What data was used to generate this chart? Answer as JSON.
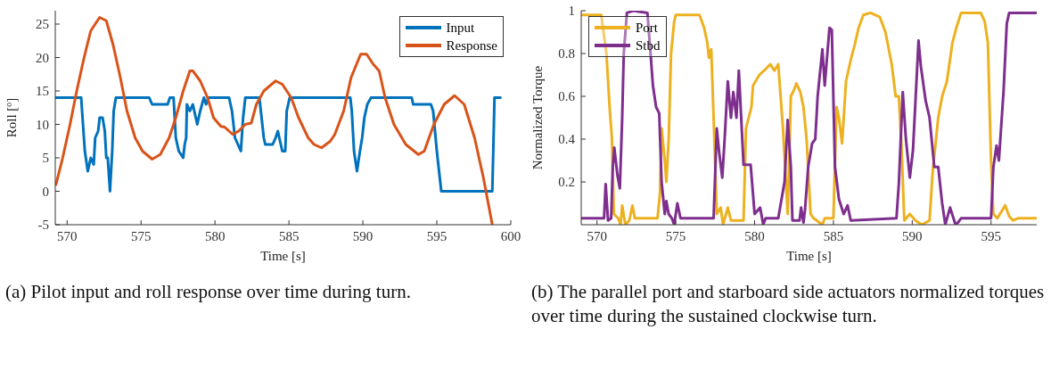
{
  "chart_data": [
    {
      "type": "line",
      "xlabel": "Time [s]",
      "ylabel": "Roll [$^{o}$]",
      "xlim": [
        569.2,
        600
      ],
      "xticks": [
        570,
        575,
        580,
        585,
        590,
        595,
        600
      ],
      "ylim": [
        -5,
        27
      ],
      "yticks": [
        -5,
        0,
        5,
        10,
        15,
        20,
        25
      ],
      "legend": "top right",
      "annotations": [
        "(a) Pilot input and roll response over time during turn."
      ],
      "series": [
        {
          "name": "Input",
          "color": "#0072bd",
          "x": [
            569.2,
            570.95,
            571.2,
            571.4,
            571.6,
            571.8,
            571.9,
            572.1,
            572.2,
            572.4,
            572.55,
            572.65,
            572.75,
            572.9,
            573.05,
            573.15,
            573.3,
            575.55,
            575.75,
            576.8,
            576.95,
            577.2,
            577.35,
            577.55,
            577.85,
            577.95,
            578.05,
            578.1,
            578.3,
            578.5,
            578.7,
            578.8,
            579.0,
            579.25,
            579.4,
            579.55,
            580.95,
            581.15,
            581.35,
            581.75,
            581.9,
            582.05,
            583.0,
            583.1,
            583.3,
            583.4,
            583.9,
            584.1,
            584.25,
            584.45,
            584.55,
            584.75,
            584.85,
            585.05,
            589.15,
            589.25,
            589.4,
            589.6,
            589.8,
            589.95,
            590.1,
            590.3,
            590.55,
            593.3,
            593.4,
            594.6,
            594.75,
            595.0,
            595.3,
            598.75,
            598.9,
            599.3
          ],
          "values": [
            14,
            14,
            6,
            3,
            5,
            4,
            8,
            9,
            11,
            11,
            9,
            5,
            5,
            0,
            6,
            12,
            14,
            14,
            13,
            13,
            14,
            14,
            8,
            6,
            5,
            7,
            8,
            13,
            12,
            13,
            11,
            10,
            12,
            14,
            13,
            14,
            14,
            12,
            8,
            6,
            11,
            14,
            14,
            12,
            8,
            7,
            7,
            8,
            9,
            7,
            6,
            6,
            12,
            14,
            14,
            12,
            6,
            3,
            6,
            8,
            11,
            13,
            14,
            14,
            13,
            13,
            12,
            6,
            0,
            0,
            14,
            14
          ]
        },
        {
          "name": "Response",
          "color": "#d95319",
          "x": [
            569.25,
            569.7,
            570.2,
            570.65,
            571.15,
            571.6,
            572.2,
            572.65,
            573.1,
            573.6,
            574.05,
            574.6,
            575.1,
            575.75,
            576.3,
            576.9,
            577.35,
            577.85,
            578.3,
            578.5,
            579.0,
            579.5,
            579.9,
            580.4,
            580.65,
            581.2,
            581.6,
            582.05,
            582.45,
            582.8,
            583.3,
            584.1,
            584.55,
            585.15,
            585.65,
            586.3,
            586.7,
            587.2,
            587.8,
            588.1,
            588.7,
            589.2,
            589.85,
            590.25,
            590.7,
            591.1,
            591.5,
            592.1,
            592.9,
            593.75,
            594.15,
            594.8,
            595.5,
            596.2,
            596.85,
            597.55,
            598.15,
            598.75
          ],
          "values": [
            1,
            5,
            10,
            15,
            20,
            24,
            26,
            25.5,
            22,
            17,
            12,
            8,
            6,
            4.8,
            5.5,
            8,
            11,
            15,
            18,
            18,
            16.5,
            14,
            11,
            9.7,
            9.6,
            8.5,
            9,
            10,
            10.2,
            13,
            15,
            16.5,
            16,
            14,
            11,
            8,
            7,
            6.5,
            7.5,
            8.5,
            12,
            17,
            20.5,
            20.5,
            19,
            18,
            14,
            10,
            7,
            5.5,
            6,
            10,
            13,
            14.3,
            13,
            8,
            2,
            -5
          ]
        }
      ]
    },
    {
      "type": "line",
      "xlabel": "Time [s]",
      "ylabel": "Normalized Torque",
      "xlim": [
        569,
        597.9
      ],
      "xticks": [
        570,
        575,
        580,
        585,
        590,
        595
      ],
      "ylim": [
        0,
        1
      ],
      "yticks": [
        0.2,
        0.4,
        0.6,
        0.8,
        1
      ],
      "legend": "top left",
      "annotations": [
        "(b) The parallel port and starboard side actuators normalized torques over time during the sustained clockwise turn."
      ],
      "series": [
        {
          "name": "Port",
          "color": "#edb120",
          "x": [
            569,
            570.27,
            570.6,
            570.8,
            570.95,
            571.07,
            571.34,
            571.5,
            571.6,
            571.8,
            572.05,
            572.25,
            572.4,
            573.84,
            574.0,
            574.1,
            574.3,
            574.4,
            574.55,
            574.7,
            574.9,
            575.0,
            576.5,
            576.8,
            577.0,
            577.1,
            577.25,
            577.4,
            577.6,
            577.85,
            578.0,
            578.3,
            578.5,
            579.3,
            579.45,
            579.8,
            579.9,
            580.3,
            580.6,
            581.0,
            581.25,
            581.5,
            581.8,
            582.1,
            582.3,
            582.5,
            582.65,
            582.9,
            583.1,
            583.3,
            583.55,
            583.75,
            584.3,
            584.45,
            585.0,
            585.2,
            585.35,
            585.55,
            585.8,
            586.1,
            586.35,
            586.6,
            586.9,
            587.35,
            587.95,
            588.3,
            588.7,
            588.95,
            589.15,
            589.3,
            589.5,
            589.85,
            590.2,
            590.6,
            591.1,
            591.3,
            591.65,
            591.9,
            592.2,
            592.55,
            592.8,
            593.1,
            594.35,
            594.6,
            594.8,
            595.0,
            595.15,
            595.4,
            595.9,
            596.15,
            596.4,
            596.7,
            597.9
          ],
          "values": [
            0.98,
            0.98,
            0.8,
            0.55,
            0.4,
            0.05,
            0.03,
            0.0,
            0.09,
            0.0,
            0.02,
            0.09,
            0.03,
            0.03,
            0.15,
            0.45,
            0.3,
            0.2,
            0.4,
            0.8,
            0.95,
            0.98,
            0.98,
            0.92,
            0.85,
            0.78,
            0.82,
            0.5,
            0.05,
            0.08,
            0.0,
            0.08,
            0.02,
            0.02,
            0.45,
            0.55,
            0.65,
            0.7,
            0.72,
            0.75,
            0.72,
            0.75,
            0.45,
            0.05,
            0.6,
            0.63,
            0.66,
            0.62,
            0.55,
            0.4,
            0.05,
            0.03,
            0.0,
            0.03,
            0.03,
            0.55,
            0.5,
            0.38,
            0.67,
            0.77,
            0.84,
            0.92,
            0.98,
            0.99,
            0.97,
            0.9,
            0.75,
            0.6,
            0.6,
            0.4,
            0.02,
            0.05,
            0.02,
            0.0,
            0.02,
            0.25,
            0.5,
            0.6,
            0.67,
            0.85,
            0.92,
            0.99,
            0.99,
            0.95,
            0.85,
            0.3,
            0.05,
            0.03,
            0.09,
            0.04,
            0.02,
            0.03,
            0.03
          ]
        },
        {
          "name": "Stbd",
          "color": "#7e2f8e",
          "x": [
            569,
            570.45,
            570.55,
            570.7,
            570.9,
            571.0,
            571.1,
            571.3,
            571.45,
            571.6,
            571.7,
            571.9,
            572.3,
            573.2,
            573.4,
            573.55,
            573.75,
            573.95,
            574.1,
            574.3,
            574.4,
            574.55,
            574.75,
            574.9,
            575.1,
            575.3,
            577.4,
            577.6,
            577.75,
            577.95,
            578.1,
            578.3,
            578.5,
            578.65,
            578.85,
            579.0,
            579.3,
            579.75,
            580.0,
            580.35,
            580.55,
            580.7,
            581.5,
            581.9,
            582.1,
            582.3,
            582.4,
            582.85,
            582.95,
            583.1,
            583.2,
            583.4,
            583.65,
            583.85,
            584.0,
            584.3,
            584.45,
            584.75,
            584.9,
            585.1,
            585.35,
            585.65,
            585.9,
            586.1,
            589.0,
            589.15,
            589.4,
            589.6,
            589.85,
            590.05,
            590.4,
            590.55,
            590.85,
            591.1,
            591.4,
            591.65,
            591.9,
            592.1,
            592.4,
            592.75,
            592.9,
            593.1,
            595.0,
            595.15,
            595.35,
            595.5,
            595.8,
            596.0,
            596.15,
            597.9
          ],
          "values": [
            0.03,
            0.03,
            0.19,
            0.02,
            0.03,
            0.27,
            0.36,
            0.23,
            0.17,
            0.5,
            0.8,
            0.99,
            1.0,
            0.99,
            0.8,
            0.65,
            0.55,
            0.52,
            0.2,
            0.05,
            0.11,
            0.05,
            0.03,
            0.0,
            0.1,
            0.03,
            0.03,
            0.45,
            0.34,
            0.22,
            0.4,
            0.67,
            0.5,
            0.62,
            0.5,
            0.72,
            0.28,
            0.28,
            0.05,
            0.08,
            0.0,
            0.03,
            0.03,
            0.2,
            0.49,
            0.27,
            0.02,
            0.02,
            0.08,
            0.01,
            0.07,
            0.27,
            0.38,
            0.4,
            0.6,
            0.82,
            0.65,
            0.92,
            0.91,
            0.27,
            0.12,
            0.05,
            0.09,
            0.02,
            0.03,
            0.19,
            0.62,
            0.4,
            0.22,
            0.35,
            0.86,
            0.74,
            0.58,
            0.5,
            0.27,
            0.27,
            0.1,
            0.0,
            0.08,
            0.0,
            0.01,
            0.03,
            0.03,
            0.27,
            0.37,
            0.3,
            0.63,
            0.94,
            0.99,
            0.99
          ]
        }
      ]
    }
  ]
}
